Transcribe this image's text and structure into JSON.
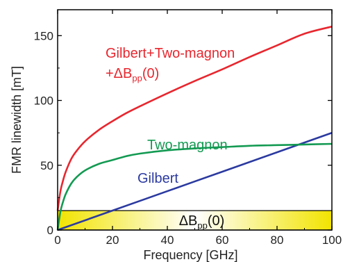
{
  "chart_data": {
    "type": "line",
    "xlabel": "Frequency [GHz]",
    "ylabel": "FMR linewidth [mT]",
    "xlim": [
      0,
      100
    ],
    "ylim": [
      0,
      170
    ],
    "xticks": [
      "0",
      "20",
      "40",
      "60",
      "80",
      "100"
    ],
    "yticks": [
      "0",
      "50",
      "100",
      "150"
    ],
    "grid": false,
    "series": [
      {
        "name": "Gilbert",
        "color": "#2b3aa0",
        "x": [
          0,
          20,
          40,
          60,
          80,
          100
        ],
        "y": [
          0,
          15,
          30,
          45,
          60,
          75
        ]
      },
      {
        "name": "Two-magnon",
        "color": "#139a52",
        "x": [
          0,
          1,
          2,
          3,
          5,
          7,
          10,
          15,
          20,
          25,
          30,
          40,
          50,
          60,
          70,
          80,
          90,
          100
        ],
        "y": [
          0,
          14,
          22,
          28,
          36,
          41,
          46,
          51,
          54,
          57,
          59,
          61.5,
          63,
          64,
          65,
          65.5,
          66,
          66.5
        ]
      },
      {
        "name": "Gilbert+Two-magnon+ΔBpp(0)",
        "color": "#e8262e",
        "x": [
          0,
          1,
          2,
          3,
          5,
          7,
          10,
          15,
          20,
          25,
          30,
          40,
          50,
          60,
          70,
          80,
          90,
          100
        ],
        "y": [
          15,
          29.7,
          38.4,
          45.2,
          55,
          61.3,
          68.5,
          77.2,
          84,
          90.2,
          95.5,
          105.5,
          115,
          124,
          133.5,
          142.5,
          151.5,
          157
        ]
      }
    ],
    "band": {
      "label_main": "ΔB",
      "label_sub": "pp",
      "label_tail": "(0)",
      "y0": 0,
      "y1": 15,
      "x0": 0,
      "x1": 100,
      "color_center": "#ffffff",
      "color_edge": "#f2e400"
    },
    "labels": {
      "red_line1": "Gilbert+Two-magnon",
      "red_line2_main": "+ΔB",
      "red_line2_sub": "pp",
      "red_line2_tail": "(0)",
      "green": "Two-magnon",
      "blue": "Gilbert"
    }
  }
}
